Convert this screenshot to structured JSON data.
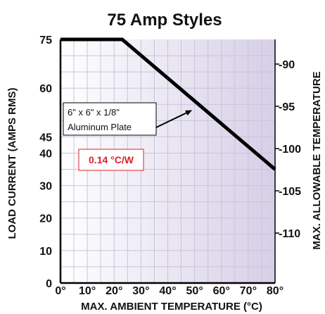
{
  "chart_data": {
    "type": "line",
    "title": "75 Amp Styles",
    "xlabel": "MAX. AMBIENT TEMPERATURE (°C)",
    "ylabel": "LOAD CURRENT (AMPS RMS)",
    "y2label": "MAX. ALLOWABLE TEMPERATURE",
    "xlim": [
      0,
      80
    ],
    "ylim": [
      0,
      75
    ],
    "x_ticks": [
      "0°",
      "10°",
      "20°",
      "30°",
      "40°",
      "50°",
      "60°",
      "70°",
      "80°"
    ],
    "y_ticks": [
      0,
      10,
      20,
      30,
      40,
      45,
      60,
      75
    ],
    "y2_ticks": [
      "-90",
      "-95",
      "-100",
      "-105",
      "-110"
    ],
    "grid": true,
    "series": [
      {
        "x": [
          0,
          23,
          80
        ],
        "y": [
          75,
          75,
          35
        ]
      }
    ],
    "annotations": {
      "plate_line1": "6\" x 6\" x 1/8\"",
      "plate_line2": "Aluminum Plate",
      "thermal_resistance": "0.14 °C/W"
    },
    "colors": {
      "line": "#000000",
      "grid": "#c8c4dc",
      "gradient_start": "#ffffff",
      "gradient_end": "#d6cfe6",
      "rate_text": "#e0202a",
      "rate_box": "#e0202a"
    }
  }
}
